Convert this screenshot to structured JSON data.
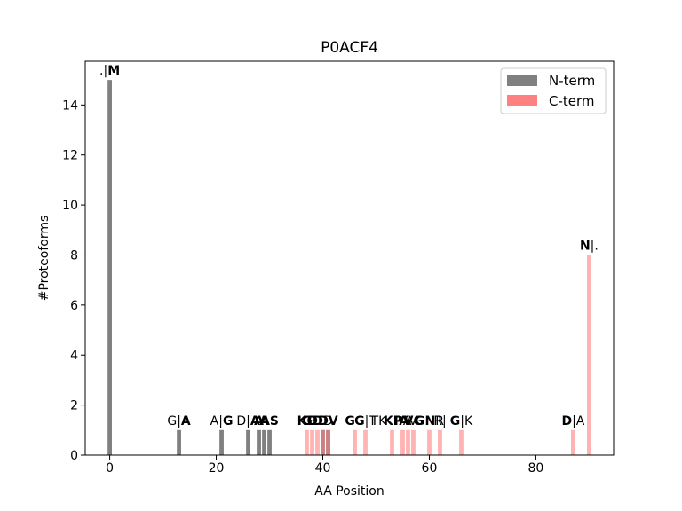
{
  "chart_data": {
    "type": "bar",
    "title": "P0ACF4",
    "xlabel": "AA Position",
    "ylabel": "#Proteoforms",
    "xlim": [
      -4.6,
      94.6
    ],
    "ylim": [
      0,
      15.75
    ],
    "xticks": [
      0,
      20,
      40,
      60,
      80
    ],
    "yticks": [
      0,
      2,
      4,
      6,
      8,
      10,
      12,
      14
    ],
    "grid": false,
    "legend_position": "top-right",
    "series": [
      {
        "name": "N-term",
        "color": "#808080",
        "points": [
          {
            "x": 0,
            "y": 15
          },
          {
            "x": 13,
            "y": 1
          },
          {
            "x": 21,
            "y": 1
          },
          {
            "x": 26,
            "y": 1
          },
          {
            "x": 28,
            "y": 1
          },
          {
            "x": 29,
            "y": 1
          },
          {
            "x": 30,
            "y": 1
          },
          {
            "x": 40,
            "y": 1
          },
          {
            "x": 41,
            "y": 1
          }
        ]
      },
      {
        "name": "C-term",
        "color": "#ff8080",
        "points": [
          {
            "x": 37,
            "y": 1
          },
          {
            "x": 38,
            "y": 1
          },
          {
            "x": 39,
            "y": 1
          },
          {
            "x": 40,
            "y": 1
          },
          {
            "x": 41,
            "y": 1
          },
          {
            "x": 46,
            "y": 1
          },
          {
            "x": 48,
            "y": 1
          },
          {
            "x": 53,
            "y": 1
          },
          {
            "x": 55,
            "y": 1
          },
          {
            "x": 56,
            "y": 1
          },
          {
            "x": 57,
            "y": 1
          },
          {
            "x": 60,
            "y": 1
          },
          {
            "x": 62,
            "y": 1
          },
          {
            "x": 66,
            "y": 1
          },
          {
            "x": 87,
            "y": 1
          },
          {
            "x": 90,
            "y": 8
          }
        ]
      }
    ],
    "annotations": [
      {
        "x": 0,
        "y": 15,
        "pre": ".|",
        "bold": "M",
        "post": ""
      },
      {
        "x": 13,
        "y": 1,
        "pre": "G|",
        "bold": "A",
        "post": ""
      },
      {
        "x": 21,
        "y": 1,
        "pre": "A|",
        "bold": "G",
        "post": ""
      },
      {
        "x": 26,
        "y": 1,
        "pre": "D|",
        "bold": "A",
        "post": ""
      },
      {
        "x": 28,
        "y": 1,
        "pre": "",
        "bold": "A",
        "post": ""
      },
      {
        "x": 29,
        "y": 1,
        "pre": "",
        "bold": "A",
        "post": ""
      },
      {
        "x": 30,
        "y": 1,
        "pre": "",
        "bold": "AS",
        "post": ""
      },
      {
        "x": 37,
        "y": 1,
        "pre": "",
        "bold": "K",
        "post": "G"
      },
      {
        "x": 38,
        "y": 1,
        "pre": "",
        "bold": "G",
        "post": "D"
      },
      {
        "x": 39,
        "y": 1,
        "pre": "",
        "bold": "D",
        "post": "D"
      },
      {
        "x": 40,
        "y": 1,
        "pre": "",
        "bold": "D",
        "post": "D"
      },
      {
        "x": 41,
        "y": 1,
        "pre": "",
        "bold": "DV",
        "post": ""
      },
      {
        "x": 46,
        "y": 1,
        "pre": "",
        "bold": "G",
        "post": "G"
      },
      {
        "x": 48,
        "y": 1,
        "pre": "",
        "bold": "G",
        "post": "|T"
      },
      {
        "x": 50.5,
        "y": 1,
        "pre": "",
        "bold": "",
        "post": "TK"
      },
      {
        "x": 53,
        "y": 1,
        "pre": "",
        "bold": "K",
        "post": "P"
      },
      {
        "x": 55,
        "y": 1,
        "pre": "",
        "bold": "P",
        "post": "A"
      },
      {
        "x": 56,
        "y": 1,
        "pre": "",
        "bold": "A",
        "post": "V"
      },
      {
        "x": 57,
        "y": 1,
        "pre": "",
        "bold": "V",
        "post": "G"
      },
      {
        "x": 60,
        "y": 1,
        "pre": "",
        "bold": "GN",
        "post": "R"
      },
      {
        "x": 62,
        "y": 1,
        "pre": "",
        "bold": "",
        "post": "R|"
      },
      {
        "x": 66,
        "y": 1,
        "pre": "",
        "bold": "G",
        "post": "|K"
      },
      {
        "x": 87,
        "y": 1,
        "pre": "",
        "bold": "D",
        "post": "|A"
      },
      {
        "x": 90,
        "y": 8,
        "pre": "",
        "bold": "N",
        "post": "|."
      }
    ]
  }
}
